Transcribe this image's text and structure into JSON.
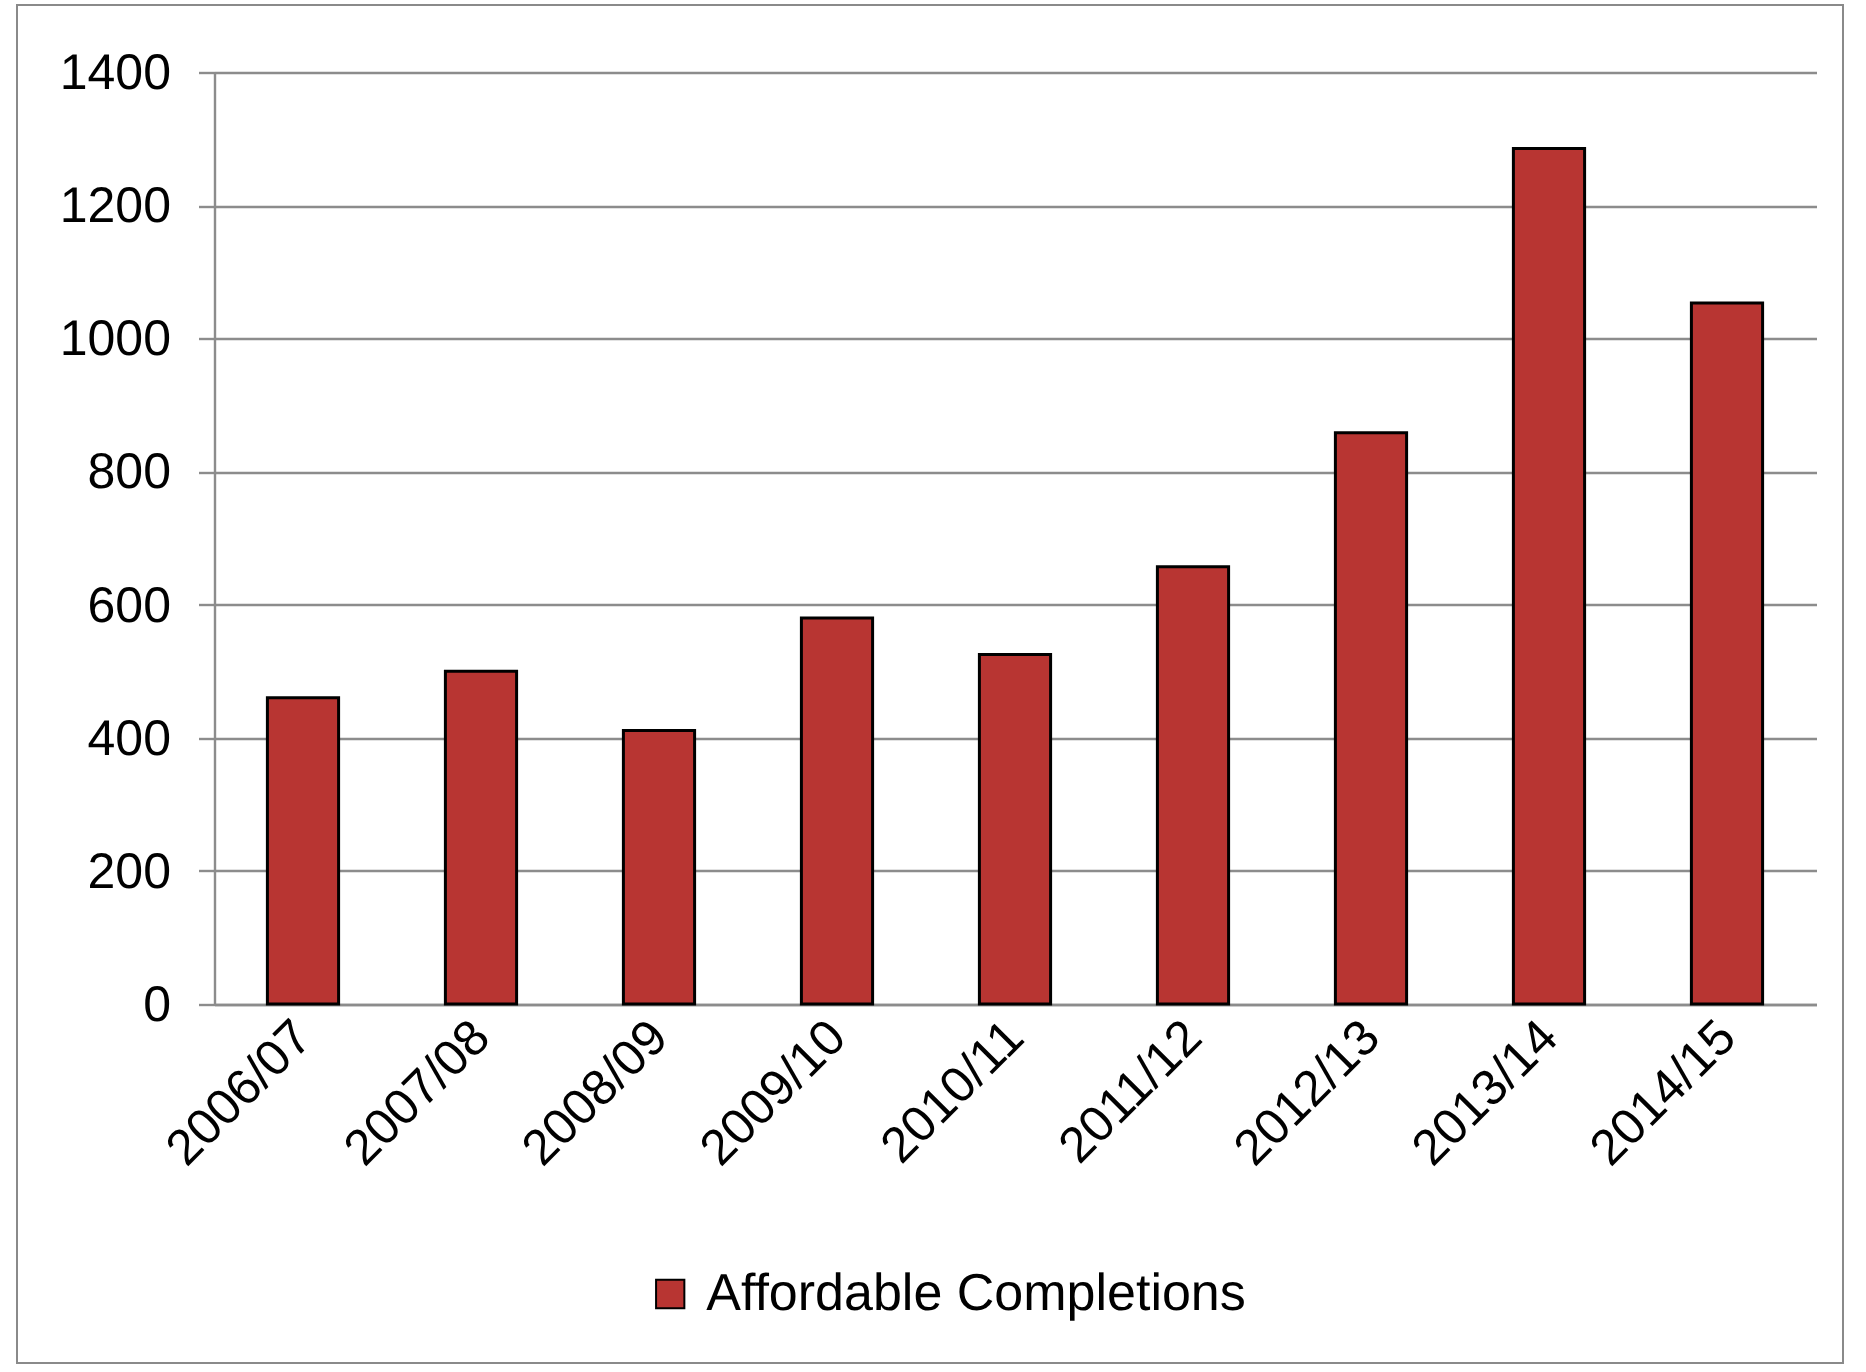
{
  "chart_data": {
    "type": "bar",
    "categories": [
      "2006/07",
      "2007/08",
      "2008/09",
      "2009/10",
      "2010/11",
      "2011/12",
      "2012/13",
      "2013/14",
      "2014/15"
    ],
    "series": [
      {
        "name": "Affordable Completions",
        "color": "#b83532",
        "values": [
          460,
          500,
          411,
          580,
          525,
          657,
          858,
          1285,
          1053
        ]
      }
    ],
    "ylim": [
      0,
      1400
    ],
    "yticks": [
      0,
      200,
      400,
      600,
      800,
      1000,
      1200,
      1400
    ],
    "grid": "y",
    "legend": "bottom"
  }
}
